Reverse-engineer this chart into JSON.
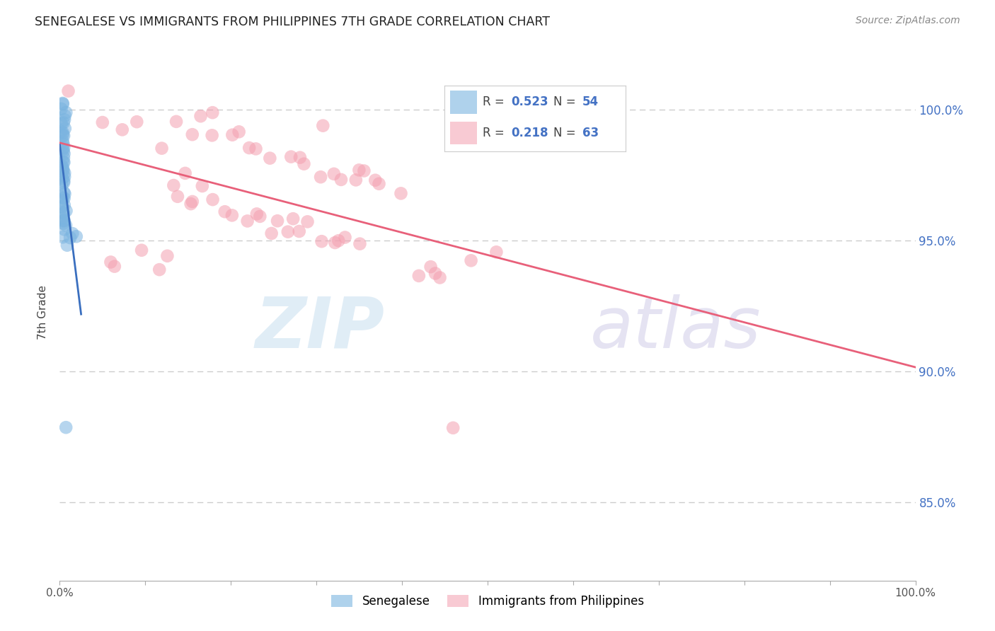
{
  "title": "SENEGALESE VS IMMIGRANTS FROM PHILIPPINES 7TH GRADE CORRELATION CHART",
  "source": "Source: ZipAtlas.com",
  "ylabel": "7th Grade",
  "blue_color": "#7ab4e0",
  "pink_color": "#f4a0b0",
  "blue_line_color": "#3a6fbf",
  "pink_line_color": "#e8607a",
  "blue_R": 0.523,
  "blue_N": 54,
  "pink_R": 0.218,
  "pink_N": 63,
  "watermark_zip": "ZIP",
  "watermark_atlas": "atlas",
  "xlim": [
    0.0,
    1.0
  ],
  "ylim": [
    0.82,
    1.025
  ],
  "yticks": [
    0.85,
    0.9,
    0.95,
    1.0
  ],
  "ytick_labels": [
    "85.0%",
    "90.0%",
    "95.0%",
    "100.0%"
  ],
  "grid_color": "#cccccc",
  "legend_R1": "0.523",
  "legend_N1": "54",
  "legend_R2": "0.218",
  "legend_N2": "63",
  "blue_x": [
    0.003,
    0.004,
    0.005,
    0.002,
    0.006,
    0.004,
    0.003,
    0.005,
    0.006,
    0.004,
    0.003,
    0.005,
    0.004,
    0.003,
    0.006,
    0.005,
    0.004,
    0.003,
    0.005,
    0.004,
    0.006,
    0.003,
    0.005,
    0.004,
    0.003,
    0.005,
    0.004,
    0.006,
    0.003,
    0.005,
    0.004,
    0.003,
    0.005,
    0.006,
    0.004,
    0.003,
    0.005,
    0.004,
    0.003,
    0.006,
    0.005,
    0.004,
    0.003,
    0.005,
    0.004,
    0.003,
    0.006,
    0.005,
    0.004,
    0.015,
    0.018,
    0.012,
    0.01,
    0.008
  ],
  "blue_y": [
    1.003,
    1.001,
    0.999,
    0.998,
    0.997,
    0.996,
    0.995,
    0.994,
    0.993,
    0.992,
    0.991,
    0.99,
    0.989,
    0.988,
    0.987,
    0.986,
    0.985,
    0.984,
    0.983,
    0.982,
    0.981,
    0.98,
    0.979,
    0.978,
    0.977,
    0.976,
    0.975,
    0.974,
    0.973,
    0.972,
    0.971,
    0.97,
    0.969,
    0.968,
    0.967,
    0.966,
    0.965,
    0.964,
    0.963,
    0.962,
    0.961,
    0.96,
    0.959,
    0.958,
    0.957,
    0.956,
    0.955,
    0.954,
    0.953,
    0.952,
    0.951,
    0.95,
    0.949,
    0.876
  ],
  "pink_x": [
    0.005,
    0.18,
    0.09,
    0.135,
    0.31,
    0.05,
    0.155,
    0.17,
    0.175,
    0.2,
    0.075,
    0.21,
    0.22,
    0.23,
    0.12,
    0.25,
    0.145,
    0.27,
    0.28,
    0.29,
    0.3,
    0.32,
    0.33,
    0.34,
    0.35,
    0.36,
    0.37,
    0.38,
    0.13,
    0.4,
    0.14,
    0.15,
    0.16,
    0.165,
    0.185,
    0.195,
    0.205,
    0.215,
    0.225,
    0.235,
    0.245,
    0.255,
    0.265,
    0.275,
    0.285,
    0.295,
    0.305,
    0.315,
    0.325,
    0.335,
    0.345,
    0.48,
    0.51,
    0.125,
    0.06,
    0.065,
    0.1,
    0.115,
    0.42,
    0.43,
    0.44,
    0.45,
    0.46
  ],
  "pink_y": [
    1.002,
    1.0,
    0.998,
    0.999,
    0.997,
    0.996,
    0.994,
    0.993,
    0.991,
    0.99,
    0.988,
    0.987,
    0.986,
    0.984,
    0.983,
    0.982,
    0.981,
    0.98,
    0.979,
    0.978,
    0.977,
    0.976,
    0.975,
    0.974,
    0.973,
    0.972,
    0.971,
    0.97,
    0.969,
    0.968,
    0.967,
    0.966,
    0.965,
    0.964,
    0.963,
    0.962,
    0.961,
    0.96,
    0.959,
    0.958,
    0.957,
    0.956,
    0.955,
    0.954,
    0.953,
    0.952,
    0.951,
    0.95,
    0.949,
    0.948,
    0.947,
    0.946,
    0.945,
    0.944,
    0.943,
    0.942,
    0.941,
    0.94,
    0.939,
    0.938,
    0.937,
    0.936,
    0.876
  ]
}
